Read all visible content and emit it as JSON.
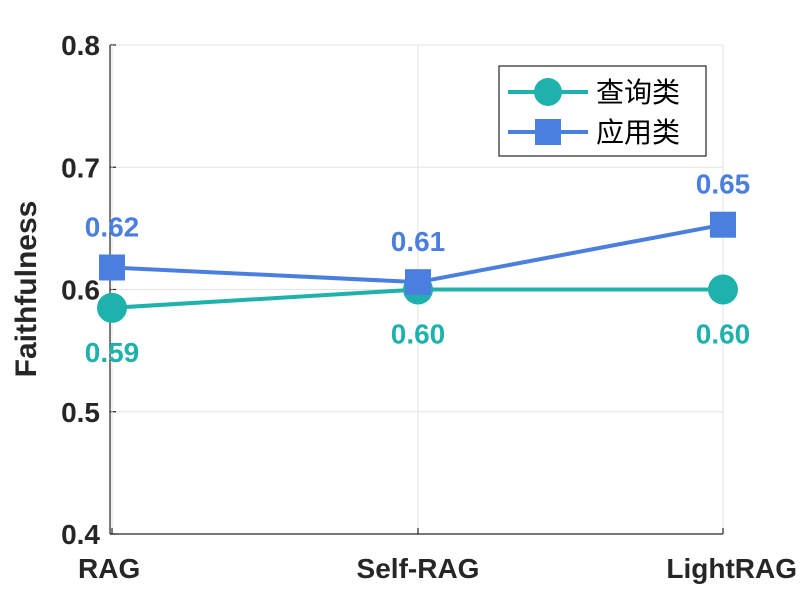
{
  "chart_data": {
    "type": "line",
    "categories": [
      "RAG",
      "Self-RAG",
      "LightRAG"
    ],
    "series": [
      {
        "name": "查询类",
        "values": [
          0.585,
          0.6,
          0.6
        ],
        "labels": [
          "0.59",
          "0.60",
          "0.60"
        ],
        "color": "#1fb2ac",
        "marker": "circle",
        "label_position": "below"
      },
      {
        "name": "应用类",
        "values": [
          0.618,
          0.606,
          0.653
        ],
        "labels": [
          "0.62",
          "0.61",
          "0.65"
        ],
        "color": "#4a7fe0",
        "marker": "square",
        "label_position": "above"
      }
    ],
    "ylabel": "Faithfulness",
    "xlabel": "",
    "ylim": [
      0.4,
      0.8
    ],
    "yticks": [
      "0.4",
      "0.5",
      "0.6",
      "0.7",
      "0.8"
    ],
    "grid": true,
    "legend_position": "top-right"
  }
}
